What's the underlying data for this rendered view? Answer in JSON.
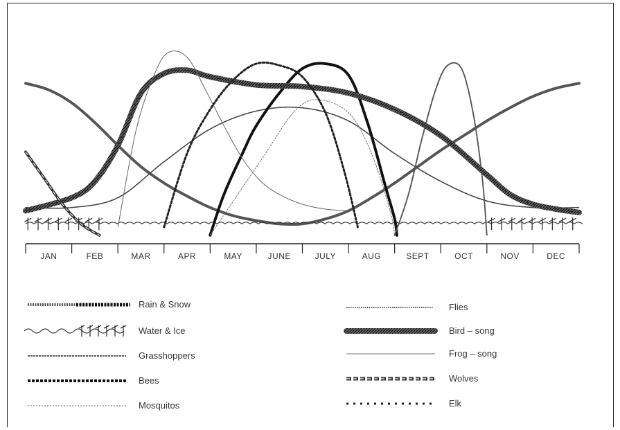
{
  "chart_data": {
    "type": "line",
    "title": "",
    "xlabel": "",
    "ylabel": "",
    "categories": [
      "JAN",
      "FEB",
      "MAR",
      "APR",
      "MAY",
      "JUNE",
      "JULY",
      "AUG",
      "SEPT",
      "OCT",
      "NOV",
      "DEC"
    ],
    "grid": false,
    "legend_position": "bottom",
    "series": [
      {
        "name": "Rain & Snow",
        "style": "hatched",
        "points": [
          [
            0.0,
            0.88
          ],
          [
            0.5,
            0.84
          ],
          [
            1.0,
            0.76
          ],
          [
            1.5,
            0.64
          ],
          [
            2.0,
            0.5
          ],
          [
            2.5,
            0.37
          ],
          [
            3.0,
            0.27
          ],
          [
            3.5,
            0.19
          ],
          [
            4.0,
            0.12
          ],
          [
            4.5,
            0.07
          ],
          [
            5.0,
            0.04
          ],
          [
            5.5,
            0.02
          ],
          [
            6.0,
            0.02
          ],
          [
            6.5,
            0.05
          ],
          [
            7.0,
            0.1
          ],
          [
            7.5,
            0.18
          ],
          [
            8.0,
            0.27
          ],
          [
            8.5,
            0.37
          ],
          [
            9.0,
            0.47
          ],
          [
            9.5,
            0.56
          ],
          [
            10.0,
            0.65
          ],
          [
            10.5,
            0.73
          ],
          [
            11.0,
            0.8
          ],
          [
            11.5,
            0.85
          ],
          [
            12.0,
            0.88
          ]
        ]
      },
      {
        "name": "Water & Ice",
        "style": "wave",
        "points": [
          [
            0.0,
            0.02
          ],
          [
            12.0,
            0.02
          ]
        ]
      },
      {
        "name": "Grasshoppers",
        "style": "dashed-fine",
        "points": [
          [
            0.0,
            0.12
          ],
          [
            1.0,
            0.12
          ],
          [
            2.0,
            0.18
          ],
          [
            3.0,
            0.4
          ],
          [
            4.0,
            0.6
          ],
          [
            5.0,
            0.71
          ],
          [
            6.0,
            0.73
          ],
          [
            7.0,
            0.65
          ],
          [
            8.0,
            0.45
          ],
          [
            9.0,
            0.28
          ],
          [
            10.0,
            0.16
          ],
          [
            11.0,
            0.12
          ],
          [
            12.0,
            0.12
          ]
        ]
      },
      {
        "name": "Bees",
        "style": "dotted-heavy",
        "points": [
          [
            4.0,
            -0.05
          ],
          [
            4.3,
            0.2
          ],
          [
            4.7,
            0.45
          ],
          [
            5.0,
            0.62
          ],
          [
            5.5,
            0.82
          ],
          [
            6.0,
            0.97
          ],
          [
            6.5,
            1.0
          ],
          [
            7.0,
            0.93
          ],
          [
            7.4,
            0.65
          ],
          [
            7.8,
            0.25
          ],
          [
            8.0,
            0.05
          ],
          [
            8.05,
            -0.05
          ]
        ]
      },
      {
        "name": "Mosquitos",
        "style": "dotted-light",
        "points": [
          [
            4.0,
            -0.05
          ],
          [
            4.6,
            0.2
          ],
          [
            5.2,
            0.45
          ],
          [
            5.8,
            0.7
          ],
          [
            6.3,
            0.78
          ],
          [
            7.0,
            0.7
          ],
          [
            7.5,
            0.45
          ],
          [
            7.9,
            0.1
          ],
          [
            8.0,
            -0.05
          ]
        ]
      },
      {
        "name": "Flies",
        "style": "dotted",
        "points": [
          [
            8.0,
            -0.05
          ],
          [
            8.3,
            0.2
          ],
          [
            8.6,
            0.55
          ],
          [
            8.9,
            0.85
          ],
          [
            9.15,
            0.99
          ],
          [
            9.45,
            0.97
          ],
          [
            9.7,
            0.7
          ],
          [
            9.9,
            0.3
          ],
          [
            10.0,
            -0.05
          ]
        ]
      },
      {
        "name": "Bird - song",
        "style": "thick-textured",
        "points": [
          [
            0.0,
            0.1
          ],
          [
            1.0,
            0.18
          ],
          [
            1.5,
            0.28
          ],
          [
            2.0,
            0.5
          ],
          [
            2.5,
            0.82
          ],
          [
            3.0,
            0.94
          ],
          [
            3.5,
            0.96
          ],
          [
            4.0,
            0.92
          ],
          [
            5.0,
            0.87
          ],
          [
            6.0,
            0.86
          ],
          [
            7.0,
            0.82
          ],
          [
            8.0,
            0.72
          ],
          [
            9.0,
            0.56
          ],
          [
            10.0,
            0.32
          ],
          [
            10.5,
            0.2
          ],
          [
            11.0,
            0.14
          ],
          [
            11.5,
            0.11
          ],
          [
            12.0,
            0.09
          ]
        ]
      },
      {
        "name": "Frog - song",
        "style": "thin",
        "points": [
          [
            2.0,
            0.0
          ],
          [
            2.4,
            0.6
          ],
          [
            2.8,
            0.94
          ],
          [
            3.1,
            1.07
          ],
          [
            3.5,
            1.04
          ],
          [
            3.9,
            0.84
          ],
          [
            4.3,
            0.62
          ],
          [
            4.7,
            0.42
          ],
          [
            5.1,
            0.28
          ],
          [
            5.5,
            0.2
          ],
          [
            6.0,
            0.14
          ],
          [
            6.5,
            0.11
          ],
          [
            7.0,
            0.1
          ]
        ]
      },
      {
        "name": "Wolves",
        "style": "braided",
        "points": [
          [
            0.0,
            0.46
          ],
          [
            0.4,
            0.3
          ],
          [
            0.8,
            0.14
          ],
          [
            1.2,
            0.02
          ],
          [
            1.6,
            -0.05
          ]
        ]
      },
      {
        "name": "Elk",
        "style": "cross",
        "points": [
          [
            3.0,
            0.0
          ],
          [
            3.5,
            0.45
          ],
          [
            4.0,
            0.72
          ],
          [
            4.5,
            0.9
          ],
          [
            5.0,
            1.0
          ],
          [
            5.5,
            0.99
          ],
          [
            6.0,
            0.92
          ],
          [
            6.5,
            0.7
          ],
          [
            6.9,
            0.35
          ],
          [
            7.2,
            0.0
          ]
        ]
      }
    ]
  },
  "legend": {
    "rain_snow": "Rain & Snow",
    "water_ice": "Water & Ice",
    "grasshoppers": "Grasshoppers",
    "bees": "Bees",
    "mosquitos": "Mosquitos",
    "flies": "Flies",
    "bird_song": "Bird – song",
    "frog_song": "Frog – song",
    "wolves": "Wolves",
    "elk": "Elk"
  }
}
